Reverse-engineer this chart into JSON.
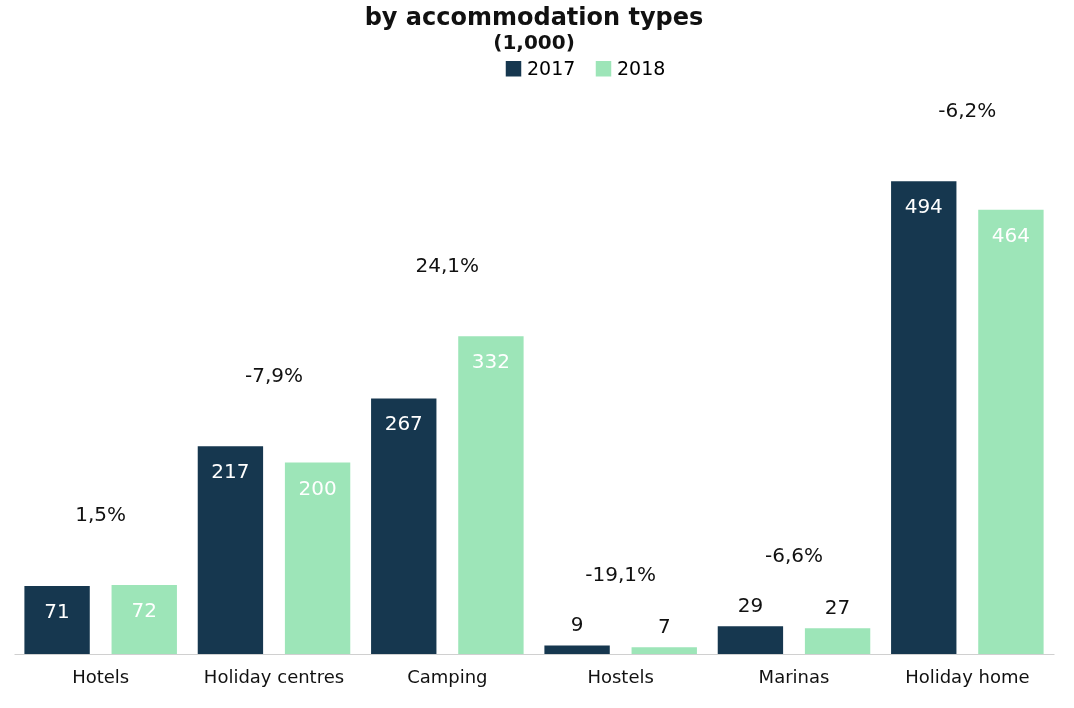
{
  "chart_data": {
    "type": "bar",
    "title": "by accommodation types",
    "subtitle": "(1,000)",
    "categories": [
      "Hotels",
      "Holiday centres",
      "Camping",
      "Hostels",
      "Marinas",
      "Holiday home"
    ],
    "series": [
      {
        "name": "2017",
        "color": "#16374f",
        "values": [
          71,
          217,
          267,
          9,
          29,
          494
        ]
      },
      {
        "name": "2018",
        "color": "#9de5b8",
        "values": [
          72,
          200,
          332,
          7,
          27,
          464
        ]
      }
    ],
    "data_labels": true,
    "legend": "top",
    "annotations": [
      "1,5%",
      "-7,9%",
      "24,1%",
      "-19,1%",
      "-6,6%",
      "-6,2%"
    ]
  }
}
